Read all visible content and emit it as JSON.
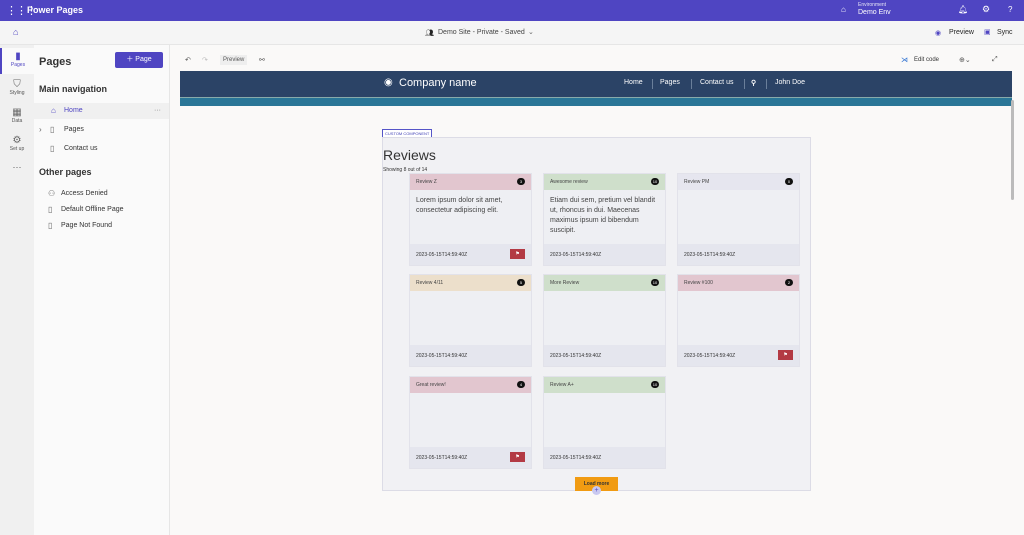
{
  "app": {
    "title": "Power Pages",
    "environment_label": "Environment",
    "environment_name": "Demo Env"
  },
  "subbar": {
    "site_status": "Demo Site - Private - Saved",
    "preview": "Preview",
    "sync": "Sync"
  },
  "rail": [
    {
      "label": "Pages",
      "icon": "page-icon"
    },
    {
      "label": "Styling",
      "icon": "brush-icon"
    },
    {
      "label": "Data",
      "icon": "table-icon"
    },
    {
      "label": "Set up",
      "icon": "settings-icon"
    }
  ],
  "panel": {
    "title": "Pages",
    "add_label": "Page",
    "main_nav_title": "Main navigation",
    "main_nav": [
      "Home",
      "Pages",
      "Contact us"
    ],
    "other_title": "Other pages",
    "other": [
      "Access Denied",
      "Default Offline Page",
      "Page Not Found"
    ]
  },
  "toolbar": {
    "preview": "Preview",
    "edit_code": "Edit code"
  },
  "site": {
    "company": "Company name",
    "nav": [
      "Home",
      "Pages",
      "Contact us",
      "John Doe"
    ]
  },
  "component": {
    "tag": "CUSTOM COMPONENT",
    "title": "Reviews",
    "showing": "Showing 8 out of 14",
    "load_more": "Load more"
  },
  "reviews": [
    {
      "title": "Review Z",
      "count": "3",
      "body": "Lorem ipsum dolor sit amet, consectetur adipiscing elit.",
      "date": "2023-05-15T14:59:40Z",
      "flag": true,
      "color": "#e2c6cf"
    },
    {
      "title": "Awesome review",
      "count": "10",
      "body": "Etiam dui sem, pretium vel blandit ut, rhoncus in dui. Maecenas maximus ipsum id bibendum suscipit.",
      "date": "2023-05-15T14:59:40Z",
      "flag": false,
      "color": "#cfdfcb"
    },
    {
      "title": "Review PM",
      "count": "0",
      "body": "",
      "date": "2023-05-15T14:59:40Z",
      "flag": false,
      "color": "#e6e6ef"
    },
    {
      "title": "Review 4/11",
      "count": "5",
      "body": "",
      "date": "2023-05-15T14:59:40Z",
      "flag": false,
      "color": "#ecdfcb"
    },
    {
      "title": "More Review",
      "count": "10",
      "body": "",
      "date": "2023-05-15T14:59:40Z",
      "flag": false,
      "color": "#cfdfcb"
    },
    {
      "title": "Review #100",
      "count": "2",
      "body": "",
      "date": "2023-05-15T14:59:40Z",
      "flag": true,
      "color": "#e2c6cf"
    },
    {
      "title": "Great review!",
      "count": "4",
      "body": "",
      "date": "2023-05-15T14:59:40Z",
      "flag": true,
      "color": "#e2c6cf"
    },
    {
      "title": "Review A+",
      "count": "10",
      "body": "",
      "date": "2023-05-15T14:59:40Z",
      "flag": false,
      "color": "#cfdfcb"
    }
  ]
}
